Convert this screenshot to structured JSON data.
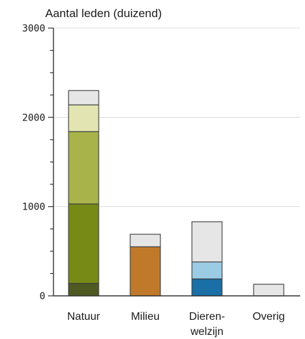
{
  "chart_data": {
    "type": "bar",
    "stacked": true,
    "title": "",
    "ylabel": "Aantal leden (duizend)",
    "xlabel": "",
    "ylim": [
      0,
      3000
    ],
    "yticks": [
      0,
      1000,
      2000,
      3000
    ],
    "ytick_labels": [
      "0",
      "1000",
      "2000",
      "3000"
    ],
    "grid": "horizontal",
    "legend": "none",
    "categories": [
      {
        "lines": [
          "Natuur"
        ]
      },
      {
        "lines": [
          "Milieu"
        ]
      },
      {
        "lines": [
          "Dieren-",
          "welzijn"
        ]
      },
      {
        "lines": [
          "Overig"
        ]
      }
    ],
    "stacks": [
      [
        {
          "value": 140,
          "color": "#4f5a23"
        },
        {
          "value": 890,
          "color": "#788a16"
        },
        {
          "value": 810,
          "color": "#a8b44a"
        },
        {
          "value": 300,
          "color": "#e2e5b1"
        },
        {
          "value": 160,
          "color": "#e6e6e6"
        }
      ],
      [
        {
          "value": 550,
          "color": "#c0792a"
        },
        {
          "value": 140,
          "color": "#e6e6e6"
        }
      ],
      [
        {
          "value": 190,
          "color": "#1a6fa6"
        },
        {
          "value": 190,
          "color": "#9ccbe4"
        },
        {
          "value": 450,
          "color": "#e6e6e6"
        }
      ],
      [
        {
          "value": 130,
          "color": "#e6e6e6"
        }
      ]
    ]
  }
}
